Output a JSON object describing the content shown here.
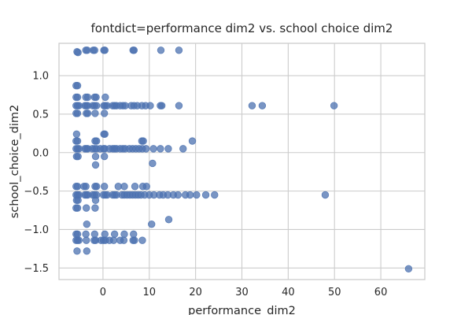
{
  "chart_data": {
    "type": "scatter",
    "title": "fontdict=performance dim2 vs. school choice dim2",
    "xlabel": "performance_dim2",
    "ylabel": "school_choice_dim2",
    "xlim": [
      -9.5,
      69.5
    ],
    "ylim": [
      -1.65,
      1.42
    ],
    "xticks": [
      0,
      10,
      20,
      30,
      40,
      50,
      60
    ],
    "yticks": [
      -1.5,
      -1.0,
      -0.5,
      0.0,
      0.5,
      1.0
    ],
    "ytick_labels": [
      "−1.5",
      "−1.0",
      "−0.5",
      "0.0",
      "0.5",
      "1.0"
    ],
    "grid": true,
    "color": "#4c72b0",
    "points": [
      [
        -5.6,
        1.31
      ],
      [
        -5.4,
        1.3
      ],
      [
        -3.7,
        1.33
      ],
      [
        -3.4,
        1.33
      ],
      [
        -2.1,
        1.33
      ],
      [
        -1.8,
        1.33
      ],
      [
        0.2,
        1.33
      ],
      [
        0.4,
        1.33
      ],
      [
        6.5,
        1.33
      ],
      [
        6.7,
        1.33
      ],
      [
        12.5,
        1.33
      ],
      [
        16.4,
        1.33
      ],
      [
        -5.8,
        0.87
      ],
      [
        -5.5,
        0.87
      ],
      [
        -5.8,
        0.72
      ],
      [
        -5.5,
        0.72
      ],
      [
        -3.7,
        0.72
      ],
      [
        -3.3,
        0.72
      ],
      [
        -1.8,
        0.72
      ],
      [
        -1.5,
        0.72
      ],
      [
        0.5,
        0.72
      ],
      [
        -5.8,
        0.61
      ],
      [
        -5.5,
        0.61
      ],
      [
        -5.2,
        0.61
      ],
      [
        -3.9,
        0.61
      ],
      [
        -3.6,
        0.61
      ],
      [
        -3.3,
        0.61
      ],
      [
        -2.2,
        0.61
      ],
      [
        -1.8,
        0.61
      ],
      [
        -1.4,
        0.61
      ],
      [
        0.2,
        0.61
      ],
      [
        0.5,
        0.61
      ],
      [
        0.9,
        0.61
      ],
      [
        2.1,
        0.61
      ],
      [
        2.5,
        0.61
      ],
      [
        2.9,
        0.61
      ],
      [
        3.7,
        0.61
      ],
      [
        4.3,
        0.61
      ],
      [
        4.8,
        0.61
      ],
      [
        6.1,
        0.61
      ],
      [
        6.7,
        0.61
      ],
      [
        7.4,
        0.61
      ],
      [
        8.4,
        0.61
      ],
      [
        9.2,
        0.61
      ],
      [
        10.2,
        0.61
      ],
      [
        12.4,
        0.61
      ],
      [
        12.7,
        0.61
      ],
      [
        16.4,
        0.61
      ],
      [
        32.2,
        0.61
      ],
      [
        34.4,
        0.61
      ],
      [
        49.9,
        0.61
      ],
      [
        -5.8,
        0.51
      ],
      [
        -5.5,
        0.51
      ],
      [
        -3.6,
        0.51
      ],
      [
        -3.3,
        0.51
      ],
      [
        -1.7,
        0.51
      ],
      [
        0.3,
        0.51
      ],
      [
        -5.7,
        0.24
      ],
      [
        0.2,
        0.24
      ],
      [
        0.4,
        0.24
      ],
      [
        -5.8,
        0.15
      ],
      [
        -5.5,
        0.15
      ],
      [
        -1.7,
        0.15
      ],
      [
        -1.4,
        0.15
      ],
      [
        8.4,
        0.15
      ],
      [
        8.7,
        0.15
      ],
      [
        19.3,
        0.15
      ],
      [
        -5.8,
        0.05
      ],
      [
        -5.5,
        0.05
      ],
      [
        -5.2,
        0.05
      ],
      [
        -3.9,
        0.05
      ],
      [
        -3.6,
        0.05
      ],
      [
        -3.3,
        0.05
      ],
      [
        -2.3,
        0.05
      ],
      [
        -1.8,
        0.05
      ],
      [
        -1.4,
        0.05
      ],
      [
        -0.6,
        0.05
      ],
      [
        0.1,
        0.05
      ],
      [
        0.4,
        0.05
      ],
      [
        1.4,
        0.05
      ],
      [
        2.1,
        0.05
      ],
      [
        2.5,
        0.05
      ],
      [
        2.9,
        0.05
      ],
      [
        3.7,
        0.05
      ],
      [
        4.3,
        0.05
      ],
      [
        4.8,
        0.05
      ],
      [
        5.7,
        0.05
      ],
      [
        6.4,
        0.05
      ],
      [
        7.1,
        0.05
      ],
      [
        7.8,
        0.05
      ],
      [
        8.5,
        0.05
      ],
      [
        9.3,
        0.05
      ],
      [
        10.9,
        0.05
      ],
      [
        12.4,
        0.05
      ],
      [
        14.1,
        0.05
      ],
      [
        17.3,
        0.05
      ],
      [
        -5.7,
        -0.05
      ],
      [
        -5.4,
        -0.05
      ],
      [
        -1.6,
        -0.05
      ],
      [
        0.3,
        -0.05
      ],
      [
        -1.6,
        -0.16
      ],
      [
        10.7,
        -0.14
      ],
      [
        -5.8,
        -0.44
      ],
      [
        -5.5,
        -0.44
      ],
      [
        -4.1,
        -0.44
      ],
      [
        -3.7,
        -0.44
      ],
      [
        -1.7,
        -0.44
      ],
      [
        -1.4,
        -0.44
      ],
      [
        0.3,
        -0.44
      ],
      [
        3.3,
        -0.44
      ],
      [
        4.6,
        -0.44
      ],
      [
        6.9,
        -0.44
      ],
      [
        8.6,
        -0.44
      ],
      [
        9.4,
        -0.44
      ],
      [
        -5.8,
        -0.55
      ],
      [
        -5.5,
        -0.55
      ],
      [
        -5.2,
        -0.55
      ],
      [
        -3.9,
        -0.55
      ],
      [
        -3.6,
        -0.55
      ],
      [
        -3.3,
        -0.55
      ],
      [
        -2.2,
        -0.55
      ],
      [
        -1.8,
        -0.55
      ],
      [
        -1.4,
        -0.55
      ],
      [
        0.1,
        -0.55
      ],
      [
        0.5,
        -0.55
      ],
      [
        0.9,
        -0.55
      ],
      [
        2.1,
        -0.55
      ],
      [
        2.5,
        -0.55
      ],
      [
        2.9,
        -0.55
      ],
      [
        4.1,
        -0.55
      ],
      [
        4.6,
        -0.55
      ],
      [
        5.2,
        -0.55
      ],
      [
        5.8,
        -0.55
      ],
      [
        6.4,
        -0.55
      ],
      [
        7.0,
        -0.55
      ],
      [
        7.6,
        -0.55
      ],
      [
        8.2,
        -0.55
      ],
      [
        9.0,
        -0.55
      ],
      [
        10.0,
        -0.55
      ],
      [
        11.0,
        -0.55
      ],
      [
        12.2,
        -0.55
      ],
      [
        13.0,
        -0.55
      ],
      [
        14.0,
        -0.55
      ],
      [
        15.2,
        -0.55
      ],
      [
        16.2,
        -0.55
      ],
      [
        17.8,
        -0.55
      ],
      [
        18.8,
        -0.55
      ],
      [
        20.2,
        -0.55
      ],
      [
        22.2,
        -0.55
      ],
      [
        24.1,
        -0.55
      ],
      [
        48.0,
        -0.55
      ],
      [
        -5.7,
        -0.62
      ],
      [
        -5.4,
        -0.62
      ],
      [
        -1.6,
        -0.62
      ],
      [
        -5.8,
        -0.72
      ],
      [
        -5.5,
        -0.72
      ],
      [
        -3.6,
        -0.72
      ],
      [
        -1.7,
        -0.72
      ],
      [
        14.2,
        -0.87
      ],
      [
        -3.5,
        -0.93
      ],
      [
        10.5,
        -0.93
      ],
      [
        -5.8,
        -1.06
      ],
      [
        -5.5,
        -1.06
      ],
      [
        -3.7,
        -1.06
      ],
      [
        -1.8,
        -1.06
      ],
      [
        0.4,
        -1.06
      ],
      [
        2.5,
        -1.06
      ],
      [
        4.6,
        -1.06
      ],
      [
        6.6,
        -1.06
      ],
      [
        -5.8,
        -1.14
      ],
      [
        -5.5,
        -1.14
      ],
      [
        -5.2,
        -1.14
      ],
      [
        -3.6,
        -1.14
      ],
      [
        -1.9,
        -1.14
      ],
      [
        -1.6,
        -1.14
      ],
      [
        -0.4,
        -1.14
      ],
      [
        0.1,
        -1.14
      ],
      [
        0.5,
        -1.14
      ],
      [
        1.4,
        -1.14
      ],
      [
        2.3,
        -1.14
      ],
      [
        3.7,
        -1.14
      ],
      [
        4.5,
        -1.14
      ],
      [
        6.5,
        -1.14
      ],
      [
        6.8,
        -1.14
      ],
      [
        8.5,
        -1.14
      ],
      [
        -5.6,
        -1.28
      ],
      [
        -3.5,
        -1.28
      ],
      [
        66.0,
        -1.51
      ]
    ]
  }
}
